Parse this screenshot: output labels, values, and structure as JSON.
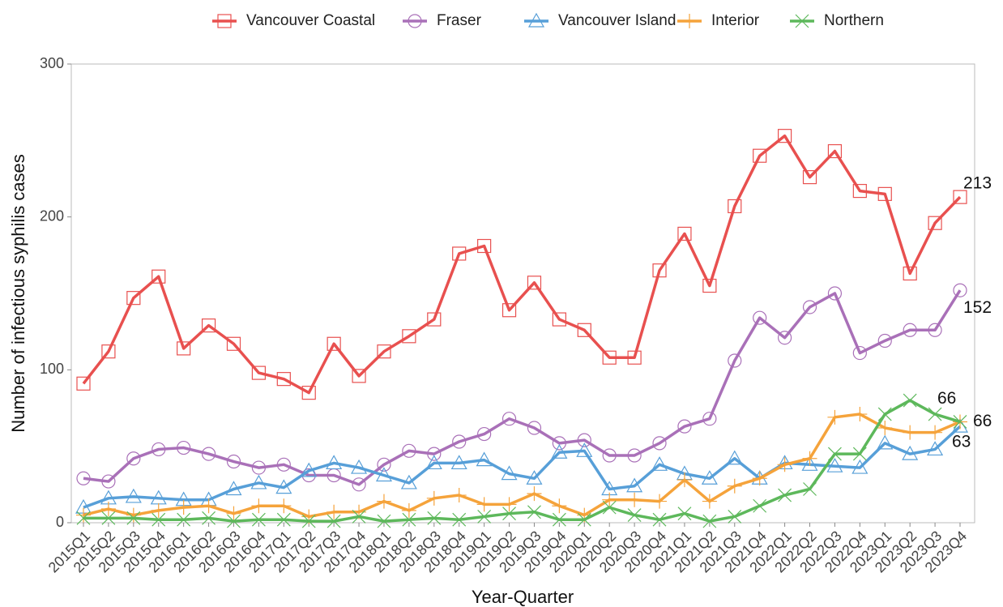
{
  "chart_data": {
    "type": "line",
    "x_label": "Year-Quarter",
    "y_label": "Number of infectious syphilis cases",
    "categories": [
      "2015Q1",
      "2015Q2",
      "2015Q3",
      "2015Q4",
      "2016Q1",
      "2016Q2",
      "2016Q3",
      "2016Q4",
      "2017Q1",
      "2017Q2",
      "2017Q3",
      "2017Q4",
      "2018Q1",
      "2018Q2",
      "2018Q3",
      "2018Q4",
      "2019Q1",
      "2019Q2",
      "2019Q3",
      "2019Q4",
      "2020Q1",
      "2020Q2",
      "2020Q3",
      "2020Q4",
      "2021Q1",
      "2021Q2",
      "2021Q3",
      "2021Q4",
      "2022Q1",
      "2022Q2",
      "2022Q3",
      "2022Q4",
      "2023Q1",
      "2023Q2",
      "2023Q3",
      "2023Q4"
    ],
    "ylim": [
      0,
      300
    ],
    "yticks": [
      0,
      100,
      200,
      300
    ],
    "grid": false,
    "legend": "top",
    "series": [
      {
        "name": "Vancouver Coastal",
        "color": "#e8504f",
        "marker": "square",
        "values": [
          91,
          112,
          147,
          161,
          114,
          129,
          117,
          98,
          94,
          85,
          117,
          96,
          112,
          122,
          133,
          176,
          181,
          139,
          157,
          133,
          126,
          108,
          108,
          165,
          189,
          155,
          207,
          240,
          253,
          226,
          243,
          217,
          215,
          163,
          196,
          213
        ]
      },
      {
        "name": "Fraser",
        "color": "#a970b8",
        "marker": "circle",
        "values": [
          29,
          27,
          42,
          48,
          49,
          45,
          40,
          36,
          38,
          31,
          31,
          25,
          38,
          47,
          45,
          53,
          58,
          68,
          62,
          52,
          54,
          44,
          44,
          52,
          63,
          68,
          106,
          134,
          121,
          141,
          150,
          111,
          119,
          126,
          126,
          152
        ]
      },
      {
        "name": "Vancouver Island",
        "color": "#579fd8",
        "marker": "triangle",
        "values": [
          10,
          16,
          17,
          16,
          15,
          15,
          22,
          26,
          23,
          34,
          39,
          36,
          31,
          26,
          39,
          39,
          41,
          32,
          29,
          46,
          47,
          22,
          24,
          38,
          32,
          29,
          42,
          29,
          39,
          38,
          37,
          36,
          52,
          45,
          48,
          63
        ]
      },
      {
        "name": "Interior",
        "color": "#f5a33b",
        "marker": "plus",
        "values": [
          5,
          9,
          5,
          8,
          10,
          11,
          6,
          11,
          11,
          4,
          7,
          7,
          14,
          8,
          16,
          18,
          12,
          12,
          19,
          11,
          5,
          15,
          15,
          14,
          28,
          14,
          24,
          29,
          38,
          42,
          69,
          71,
          62,
          59,
          59,
          66
        ]
      },
      {
        "name": "Northern",
        "color": "#5db85b",
        "marker": "cross",
        "values": [
          3,
          3,
          3,
          2,
          2,
          3,
          1,
          2,
          2,
          1,
          1,
          4,
          1,
          2,
          3,
          2,
          4,
          6,
          7,
          2,
          2,
          10,
          5,
          2,
          6,
          1,
          4,
          11,
          18,
          22,
          45,
          45,
          71,
          80,
          71,
          66
        ]
      }
    ]
  }
}
